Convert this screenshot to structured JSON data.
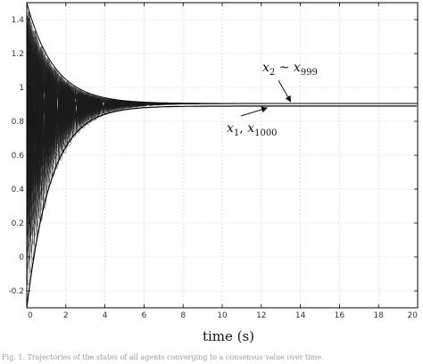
{
  "chart_data": {
    "type": "line",
    "xlabel": "time (s)",
    "ylabel": "",
    "xlim": [
      0,
      20
    ],
    "ylim": [
      -0.3,
      1.5
    ],
    "x_ticks": [
      0,
      2,
      4,
      6,
      8,
      10,
      12,
      14,
      16,
      18,
      20
    ],
    "y_ticks": [
      -0.2,
      0,
      0.2,
      0.4,
      0.6,
      0.8,
      1,
      1.2,
      1.4
    ],
    "x_tick_labels": [
      "0",
      "2",
      "4",
      "6",
      "8",
      "10",
      "12",
      "14",
      "16",
      "18",
      "20"
    ],
    "y_tick_labels": [
      "-0.2",
      "0",
      "0.2",
      "0.4",
      "0.6",
      "0.8",
      "1",
      "1.2",
      "1.4"
    ],
    "grid": true,
    "series": [
      {
        "name": "x_2 ~ x_999",
        "upper_envelope_start": 1.5,
        "steady_state": 0.905,
        "settle_time": 7
      },
      {
        "name": "x_1, x_1000",
        "lower_envelope_start": -0.3,
        "steady_state": 0.89,
        "settle_time": 7
      }
    ],
    "annotations": [
      {
        "main": "x",
        "sub": "2",
        "sep": " ~ ",
        "main2": "x",
        "sub2": "999",
        "points_to_x": 13.5,
        "points_to_y": 0.905
      },
      {
        "main": "x",
        "sub": "1",
        "sep": ", ",
        "main2": "x",
        "sub2": "1000",
        "points_to_x": 12.3,
        "points_to_y": 0.89
      }
    ]
  },
  "caption": "Fig. 1.  Trajectories of the states of all agents converging to a consensus value over time."
}
